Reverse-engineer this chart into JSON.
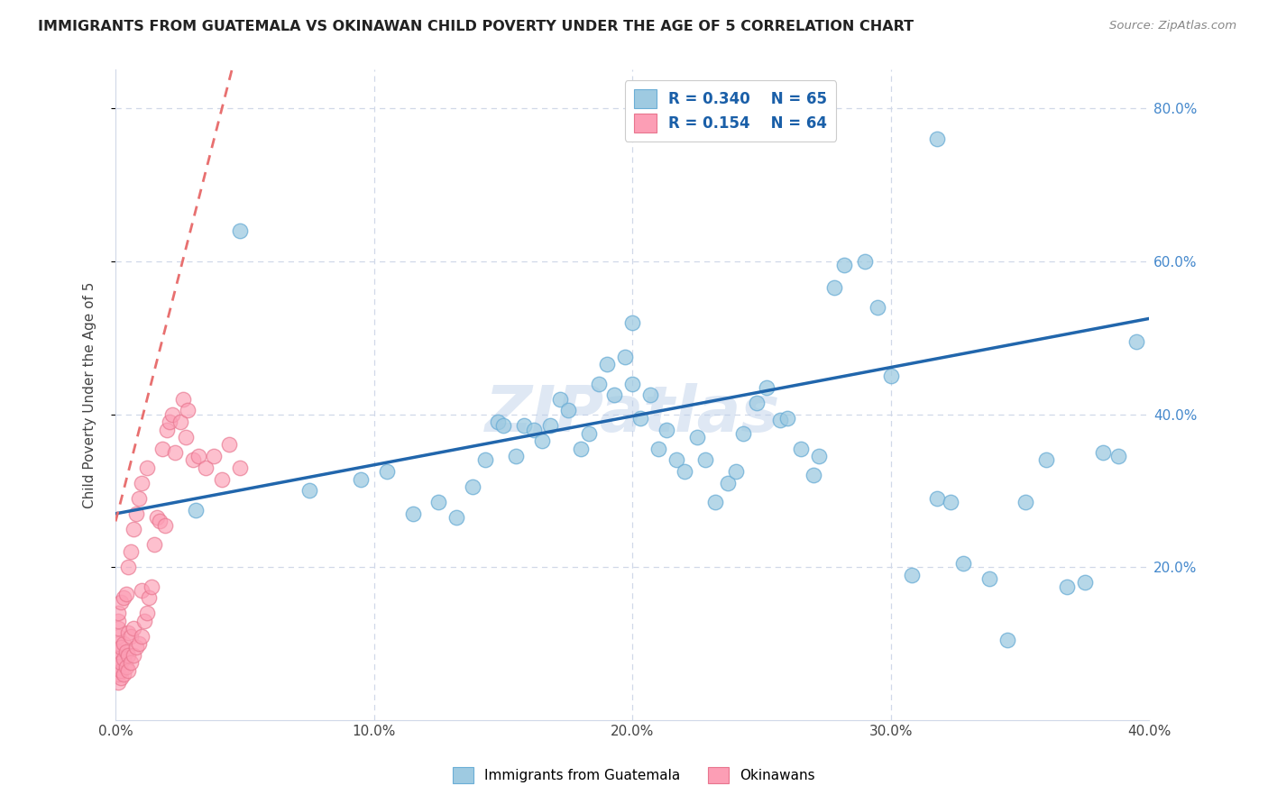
{
  "title": "IMMIGRANTS FROM GUATEMALA VS OKINAWAN CHILD POVERTY UNDER THE AGE OF 5 CORRELATION CHART",
  "source": "Source: ZipAtlas.com",
  "ylabel": "Child Poverty Under the Age of 5",
  "xlim": [
    0.0,
    0.4
  ],
  "ylim": [
    0.0,
    0.85
  ],
  "x_ticks": [
    0.0,
    0.1,
    0.2,
    0.3,
    0.4
  ],
  "x_tick_labels": [
    "0.0%",
    "10.0%",
    "20.0%",
    "30.0%",
    "40.0%"
  ],
  "y_ticks_right": [
    0.2,
    0.4,
    0.6,
    0.8
  ],
  "y_tick_labels_right": [
    "20.0%",
    "40.0%",
    "60.0%",
    "80.0%"
  ],
  "legend_r1": "R = 0.340",
  "legend_n1": "N = 65",
  "legend_r2": "R = 0.154",
  "legend_n2": "N = 64",
  "blue_color": "#9ecae1",
  "blue_edge_color": "#6baed6",
  "pink_color": "#fc9eb5",
  "pink_edge_color": "#e8758e",
  "blue_line_color": "#2166ac",
  "pink_line_color": "#d6304a",
  "pink_trend_line_color": "#e87070",
  "watermark": "ZIPatlas",
  "bg_color": "#ffffff",
  "grid_color": "#d0d8e8",
  "spine_color": "#d0d8e8",
  "right_tick_color": "#4488cc",
  "title_color": "#222222",
  "source_color": "#888888",
  "blue_trend_x0": 0.0,
  "blue_trend_y0": 0.27,
  "blue_trend_x1": 0.4,
  "blue_trend_y1": 0.525,
  "pink_trend_x0": 0.0,
  "pink_trend_y0": 0.26,
  "pink_trend_x1": 0.045,
  "pink_trend_y1": 0.85,
  "blue_pts_x": [
    0.031,
    0.048,
    0.075,
    0.095,
    0.105,
    0.115,
    0.125,
    0.132,
    0.138,
    0.143,
    0.148,
    0.15,
    0.155,
    0.158,
    0.162,
    0.165,
    0.168,
    0.172,
    0.175,
    0.18,
    0.183,
    0.187,
    0.19,
    0.193,
    0.197,
    0.2,
    0.203,
    0.207,
    0.21,
    0.213,
    0.217,
    0.22,
    0.225,
    0.228,
    0.232,
    0.237,
    0.24,
    0.243,
    0.248,
    0.252,
    0.257,
    0.26,
    0.265,
    0.27,
    0.272,
    0.278,
    0.282,
    0.29,
    0.295,
    0.3,
    0.308,
    0.318,
    0.323,
    0.328,
    0.338,
    0.345,
    0.352,
    0.36,
    0.368,
    0.375,
    0.382,
    0.388,
    0.395,
    0.318,
    0.2
  ],
  "blue_pts_y": [
    0.275,
    0.64,
    0.3,
    0.315,
    0.325,
    0.27,
    0.285,
    0.265,
    0.305,
    0.34,
    0.39,
    0.385,
    0.345,
    0.385,
    0.38,
    0.365,
    0.385,
    0.42,
    0.405,
    0.355,
    0.375,
    0.44,
    0.465,
    0.425,
    0.475,
    0.44,
    0.395,
    0.425,
    0.355,
    0.38,
    0.34,
    0.325,
    0.37,
    0.34,
    0.285,
    0.31,
    0.325,
    0.375,
    0.415,
    0.435,
    0.392,
    0.395,
    0.355,
    0.32,
    0.345,
    0.565,
    0.595,
    0.6,
    0.54,
    0.45,
    0.19,
    0.29,
    0.285,
    0.205,
    0.185,
    0.105,
    0.285,
    0.34,
    0.175,
    0.18,
    0.35,
    0.345,
    0.495,
    0.76,
    0.52
  ],
  "pink_pts_x": [
    0.001,
    0.001,
    0.001,
    0.001,
    0.001,
    0.001,
    0.001,
    0.001,
    0.001,
    0.001,
    0.002,
    0.002,
    0.002,
    0.002,
    0.002,
    0.003,
    0.003,
    0.003,
    0.003,
    0.004,
    0.004,
    0.004,
    0.005,
    0.005,
    0.005,
    0.005,
    0.006,
    0.006,
    0.006,
    0.007,
    0.007,
    0.007,
    0.008,
    0.008,
    0.009,
    0.009,
    0.01,
    0.01,
    0.01,
    0.011,
    0.012,
    0.012,
    0.013,
    0.014,
    0.015,
    0.016,
    0.017,
    0.018,
    0.019,
    0.02,
    0.021,
    0.022,
    0.023,
    0.025,
    0.026,
    0.027,
    0.028,
    0.03,
    0.032,
    0.035,
    0.038,
    0.041,
    0.044,
    0.048
  ],
  "pink_pts_y": [
    0.05,
    0.06,
    0.07,
    0.08,
    0.09,
    0.1,
    0.11,
    0.12,
    0.13,
    0.14,
    0.055,
    0.065,
    0.075,
    0.095,
    0.155,
    0.06,
    0.08,
    0.1,
    0.16,
    0.07,
    0.09,
    0.165,
    0.065,
    0.085,
    0.115,
    0.2,
    0.075,
    0.11,
    0.22,
    0.085,
    0.12,
    0.25,
    0.095,
    0.27,
    0.1,
    0.29,
    0.11,
    0.17,
    0.31,
    0.13,
    0.14,
    0.33,
    0.16,
    0.175,
    0.23,
    0.265,
    0.26,
    0.355,
    0.255,
    0.38,
    0.39,
    0.4,
    0.35,
    0.39,
    0.42,
    0.37,
    0.405,
    0.34,
    0.345,
    0.33,
    0.345,
    0.315,
    0.36,
    0.33
  ]
}
